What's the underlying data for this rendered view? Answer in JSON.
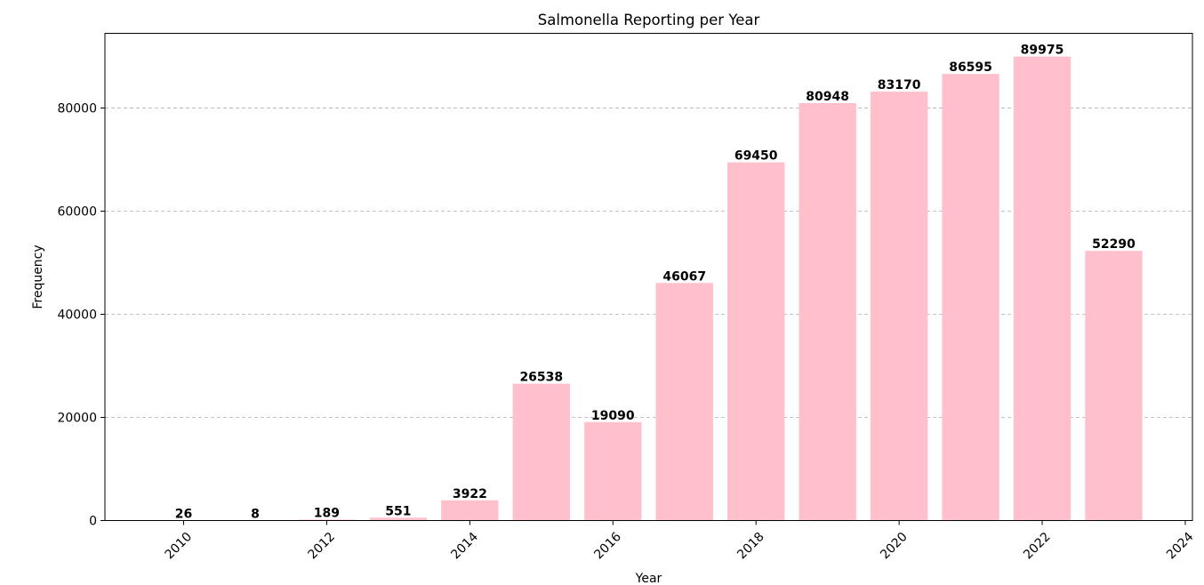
{
  "chart_data": {
    "type": "bar",
    "title": "Salmonella Reporting per Year",
    "xlabel": "Year",
    "ylabel": "Frequency",
    "x": [
      2010,
      2011,
      2012,
      2013,
      2014,
      2015,
      2016,
      2017,
      2018,
      2019,
      2020,
      2021,
      2022,
      2023
    ],
    "values": [
      26,
      8,
      189,
      551,
      3922,
      26538,
      19090,
      46067,
      69450,
      80948,
      83170,
      86595,
      89975,
      52290
    ],
    "data_labels": [
      "26",
      "8",
      "189",
      "551",
      "3922",
      "26538",
      "19090",
      "46067",
      "69450",
      "80948",
      "83170",
      "86595",
      "89975",
      "52290"
    ],
    "xlim": [
      2008.9,
      2024.1
    ],
    "ylim": [
      0,
      94474
    ],
    "x_ticks": [
      2010,
      2012,
      2014,
      2016,
      2018,
      2020,
      2022,
      2024
    ],
    "x_tick_labels": [
      "2010",
      "2012",
      "2014",
      "2016",
      "2018",
      "2020",
      "2022",
      "2024"
    ],
    "y_ticks": [
      0,
      20000,
      40000,
      60000,
      80000
    ],
    "y_tick_labels": [
      "0",
      "20000",
      "40000",
      "60000",
      "80000"
    ],
    "bar_width_years": 0.8,
    "bar_color": "#ffc0cb",
    "grid": "horizontal dashed",
    "grid_color": "#b0b0b0"
  }
}
